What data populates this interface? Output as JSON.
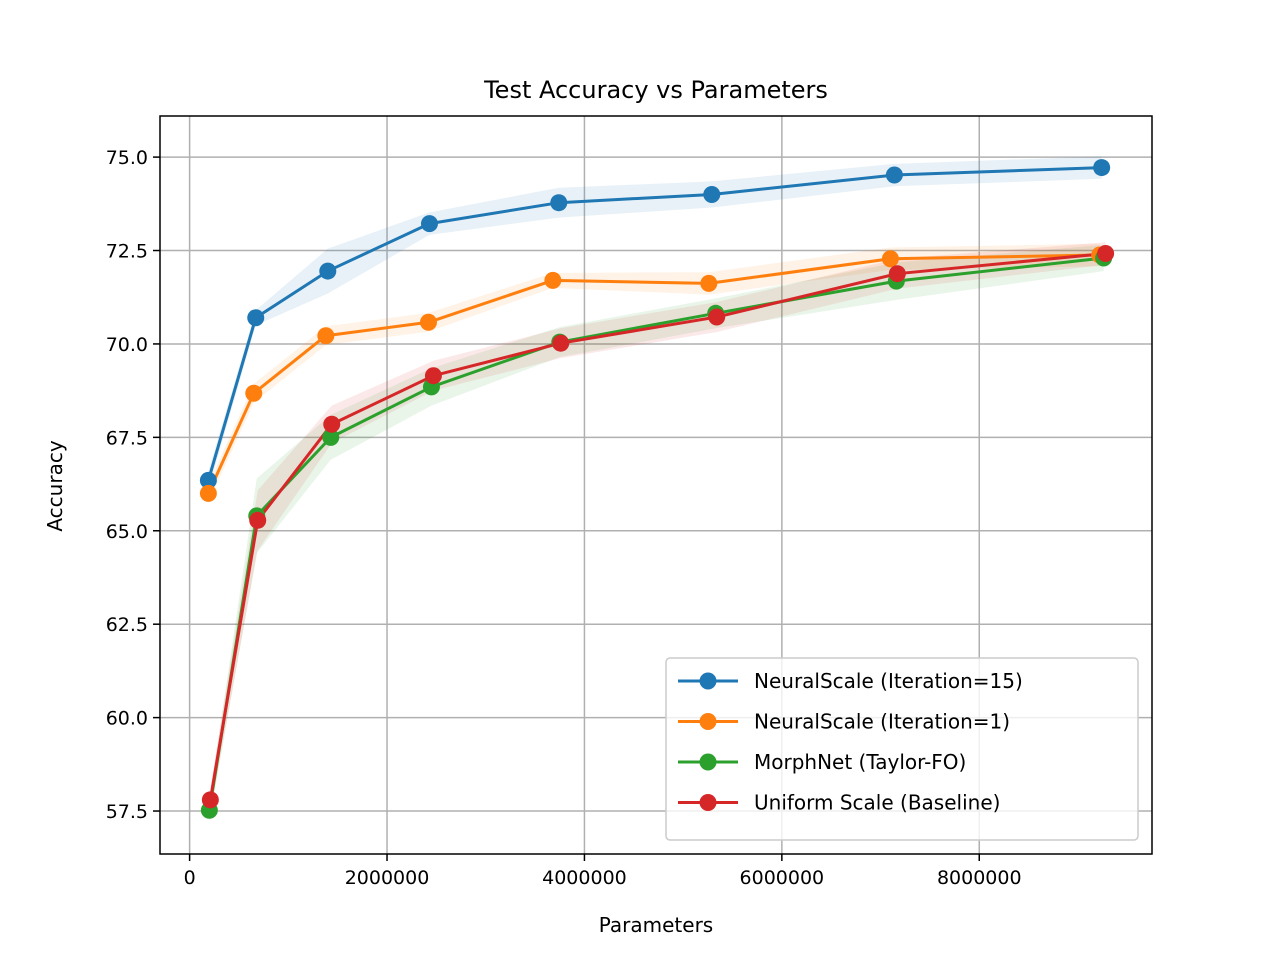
{
  "chart_data": {
    "type": "line",
    "title": "Test Accuracy vs Parameters",
    "xlabel": "Parameters",
    "ylabel": "Accuracy",
    "xlim": [
      -300000,
      9750000
    ],
    "ylim": [
      56.35,
      76.1
    ],
    "xticks": [
      0,
      2000000,
      4000000,
      6000000,
      8000000
    ],
    "xtick_labels": [
      "0",
      "2000000",
      "4000000",
      "6000000",
      "8000000"
    ],
    "yticks": [
      57.5,
      60.0,
      62.5,
      65.0,
      67.5,
      70.0,
      72.5,
      75.0
    ],
    "ytick_labels": [
      "57.5",
      "60.0",
      "62.5",
      "65.0",
      "67.5",
      "70.0",
      "72.5",
      "75.0"
    ],
    "grid": true,
    "legend_position": "lower-right",
    "series": [
      {
        "name": "NeuralScale (Iteration=15)",
        "color": "#1f77b4",
        "x": [
          190000,
          670000,
          1400000,
          2430000,
          3740000,
          5290000,
          7140000,
          9240000
        ],
        "y": [
          66.35,
          70.7,
          71.95,
          73.22,
          73.78,
          74.0,
          74.52,
          74.72
        ],
        "band": [
          0.25,
          0.2,
          0.6,
          0.3,
          0.4,
          0.35,
          0.3,
          0.3
        ]
      },
      {
        "name": "NeuralScale (Iteration=1)",
        "color": "#ff7f0e",
        "x": [
          190000,
          650000,
          1380000,
          2420000,
          3680000,
          5260000,
          7100000,
          9220000
        ],
        "y": [
          66.0,
          68.68,
          70.22,
          70.58,
          71.7,
          71.62,
          72.28,
          72.38
        ],
        "band": [
          0.25,
          0.25,
          0.25,
          0.25,
          0.2,
          0.3,
          0.3,
          0.3
        ]
      },
      {
        "name": "MorphNet (Taylor-FO)",
        "color": "#2ca02c",
        "x": [
          200000,
          680000,
          1430000,
          2450000,
          3750000,
          5330000,
          7160000,
          9260000
        ],
        "y": [
          57.52,
          65.4,
          67.5,
          68.85,
          70.05,
          70.82,
          71.68,
          72.3
        ],
        "band": [
          0.3,
          1.0,
          0.6,
          0.5,
          0.4,
          0.4,
          0.5,
          0.35
        ]
      },
      {
        "name": "Uniform Scale (Baseline)",
        "color": "#d62728",
        "x": [
          210000,
          690000,
          1440000,
          2470000,
          3760000,
          5340000,
          7170000,
          9280000
        ],
        "y": [
          57.8,
          65.28,
          67.85,
          69.15,
          70.02,
          70.72,
          71.88,
          72.42
        ],
        "band": [
          0.3,
          0.8,
          0.5,
          0.4,
          0.4,
          0.4,
          0.4,
          0.3
        ]
      }
    ]
  }
}
